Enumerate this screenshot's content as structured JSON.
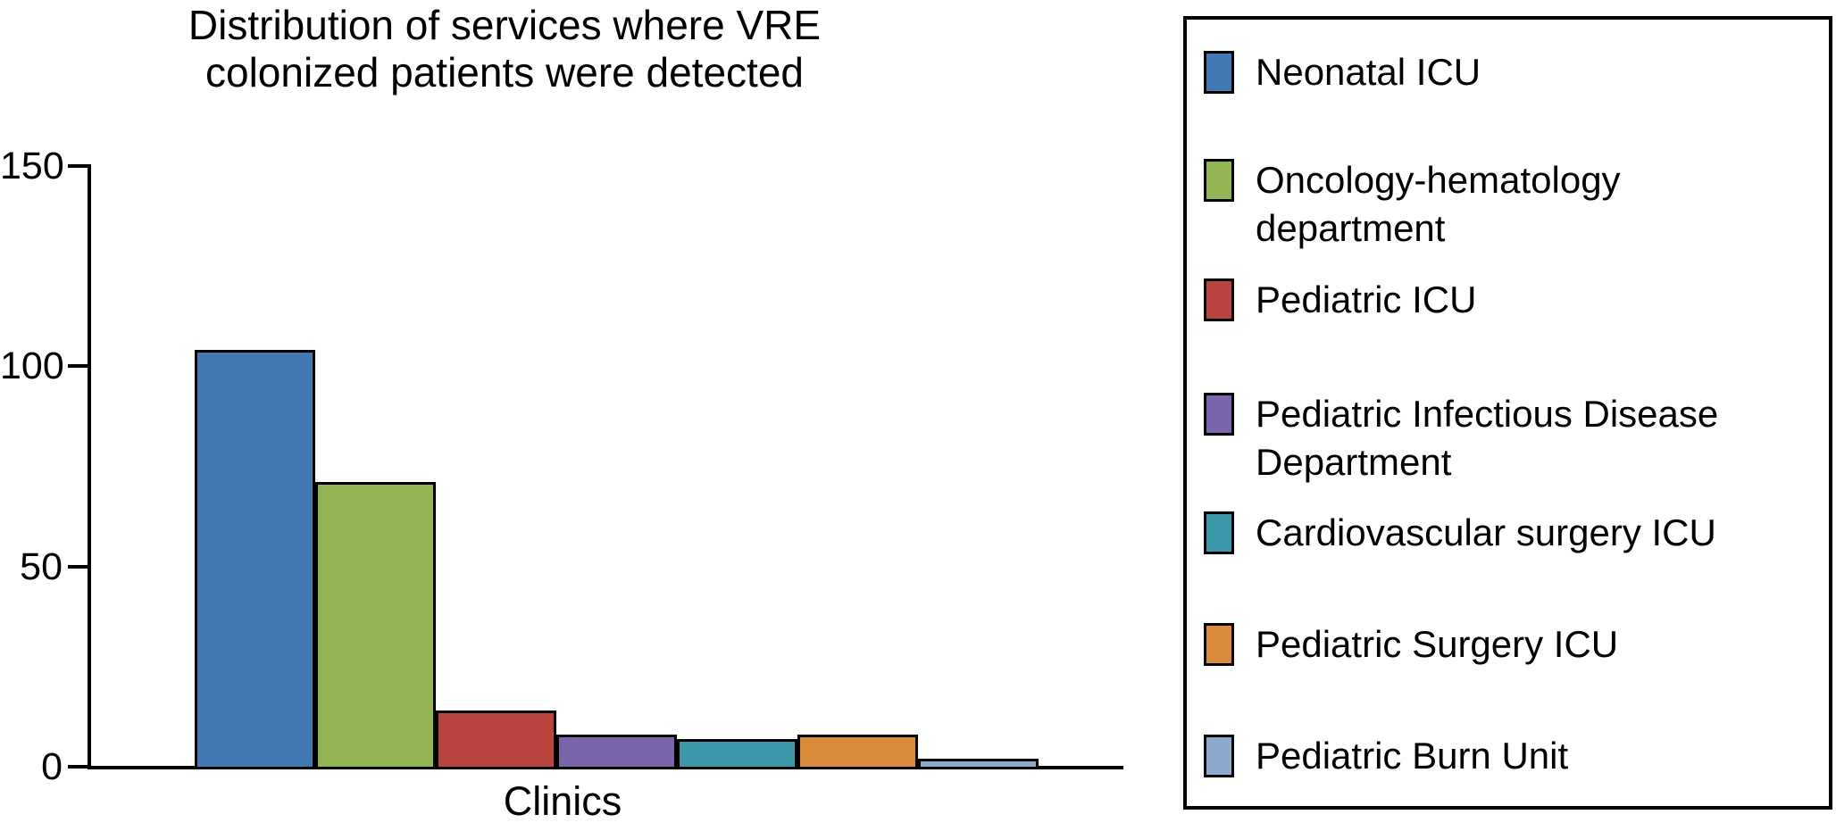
{
  "chart_data": {
    "type": "bar",
    "title": "Distribution of services where VRE colonized patients were detected",
    "xlabel": "Clinics",
    "ylabel": "",
    "ylim": [
      0,
      150
    ],
    "yticks": [
      0,
      50,
      100,
      150
    ],
    "categories": [
      "Neonatal ICU",
      "Oncology-hematology department",
      "Pediatric ICU",
      "Pediatric Infectious Disease Department",
      "Cardiovascular surgery ICU",
      "Pediatric Surgery ICU",
      "Pediatric Burn Unit"
    ],
    "values": [
      104,
      71,
      14,
      8,
      7,
      8,
      2
    ],
    "colors": [
      "#4379b2",
      "#93b553",
      "#b9443e",
      "#7a64aa",
      "#3c97a9",
      "#d98b3b",
      "#8fa9ce"
    ],
    "bar_border_color": "#000000",
    "axis_color": "#000000",
    "grid": false,
    "legend_position": "right"
  }
}
